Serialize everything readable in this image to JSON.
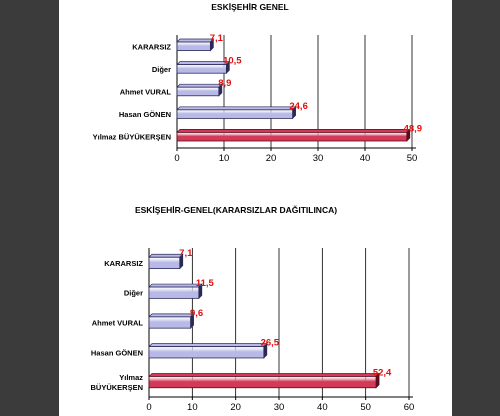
{
  "colors": {
    "bar_fill": "#b9b9e8",
    "bar_edge": "#2a2a55",
    "highlight_fill": "#d23a58",
    "highlight_edge": "#5a0c1c",
    "label_color": "#e01010",
    "grid": "#000000"
  },
  "chart_data": [
    {
      "type": "bar",
      "orientation": "horizontal",
      "title": "ESKİŞEHİR GENEL",
      "categories": [
        "KARARSIZ",
        "Diğer",
        "Ahmet VURAL",
        "Hasan GÖNEN",
        "Yılmaz BÜYÜKERŞEN"
      ],
      "values": [
        7.1,
        10.5,
        8.9,
        24.6,
        48.9
      ],
      "value_labels": [
        "7,1",
        "10,5",
        "8,9",
        "24,6",
        "48,9"
      ],
      "highlight_index": 4,
      "xlim": [
        0,
        50
      ],
      "xticks": [
        "0",
        "10",
        "20",
        "30",
        "40",
        "50"
      ],
      "grid": true,
      "legend": "none"
    },
    {
      "type": "bar",
      "orientation": "horizontal",
      "title": "ESKİŞEHİR-GENEL(KARARSIZLAR DAĞITILINCA)",
      "categories": [
        "KARARSIZ",
        "Diğer",
        "Ahmet VURAL",
        "Hasan GÖNEN",
        "Yılmaz BÜYÜKERŞEN"
      ],
      "category_lines": [
        [
          "KARARSIZ"
        ],
        [
          "Diğer"
        ],
        [
          "Ahmet VURAL"
        ],
        [
          "Hasan GÖNEN"
        ],
        [
          "Yılmaz",
          "BÜYÜKERŞEN"
        ]
      ],
      "values": [
        7.1,
        11.5,
        9.6,
        26.5,
        52.4
      ],
      "value_labels": [
        "7,1",
        "11,5",
        "9,6",
        "26,5",
        "52,4"
      ],
      "highlight_index": 4,
      "xlim": [
        0,
        60
      ],
      "xticks": [
        "0",
        "10",
        "20",
        "30",
        "40",
        "50",
        "60"
      ],
      "grid": true,
      "legend": "none"
    }
  ]
}
